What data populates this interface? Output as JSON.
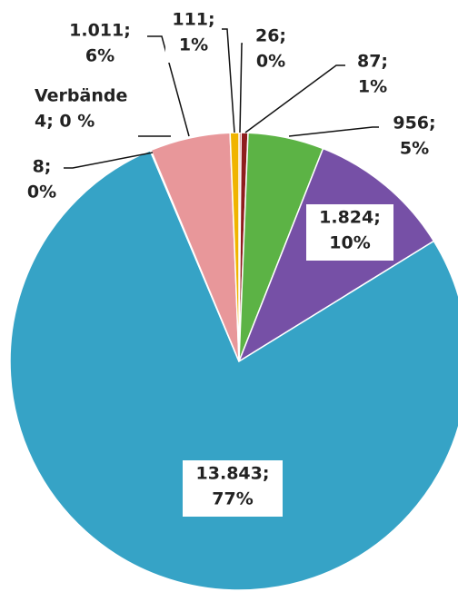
{
  "chart_data": {
    "type": "pie",
    "categories": [
      null,
      null,
      null,
      null,
      null,
      null,
      "Verbände",
      null,
      null
    ],
    "values": [
      26,
      87,
      956,
      1824,
      13843,
      8,
      4,
      1011,
      111
    ],
    "value_labels": [
      [
        "26;",
        "0%"
      ],
      [
        "87;",
        "1%"
      ],
      [
        "956;",
        "5%"
      ],
      [
        "1.824;",
        "10%"
      ],
      [
        "13.843;",
        "77%"
      ],
      [
        "8;",
        "0%"
      ],
      [
        "4; 0 %"
      ],
      [
        "1.011;",
        "6%"
      ],
      [
        "111;",
        "1%"
      ]
    ],
    "colors": [
      "#c0312b",
      "#8e1d1d",
      "#5cb345",
      "#7650a6",
      "#36a3c6",
      "#9aa0a6",
      "#b0b0b0",
      "#e8979a",
      "#f0b400"
    ]
  }
}
